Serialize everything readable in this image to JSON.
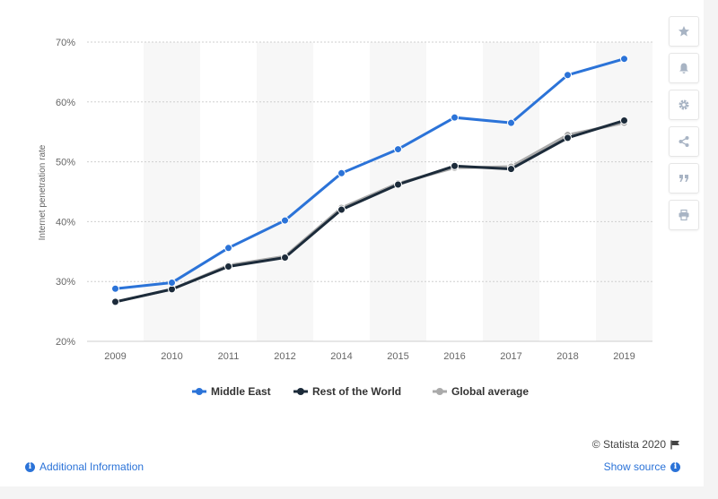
{
  "chart_data": {
    "type": "line",
    "categories": [
      "2009",
      "2010",
      "2011",
      "2012",
      "2014",
      "2015",
      "2016",
      "2017",
      "2018",
      "2019"
    ],
    "series": [
      {
        "name": "Middle East",
        "color": "#2b73d8",
        "values": [
          28.8,
          29.8,
          35.6,
          40.2,
          48.1,
          52.1,
          57.4,
          56.5,
          64.5,
          67.2
        ]
      },
      {
        "name": "Rest of the World",
        "color": "#1c2b3a",
        "values": [
          26.6,
          28.7,
          32.5,
          34.0,
          42.0,
          46.2,
          49.3,
          48.8,
          54.0,
          56.9
        ]
      },
      {
        "name": "Global average",
        "color": "#aaaaaa",
        "values": [
          26.6,
          28.7,
          32.7,
          34.2,
          42.3,
          46.4,
          49.0,
          49.2,
          54.5,
          56.5
        ]
      }
    ],
    "ylabel": "Internet penetration rate",
    "yticks": [
      "20%",
      "30%",
      "40%",
      "50%",
      "60%",
      "70%"
    ],
    "ylim": [
      20,
      70
    ],
    "grid": true,
    "legend_position": "bottom"
  },
  "toolbar": {
    "icons": [
      "star-icon",
      "bell-icon",
      "gear-icon",
      "share-icon",
      "quote-icon",
      "print-icon"
    ]
  },
  "footer": {
    "credit": "© Statista 2020",
    "additional_info": "Additional Information",
    "show_source": "Show source"
  }
}
